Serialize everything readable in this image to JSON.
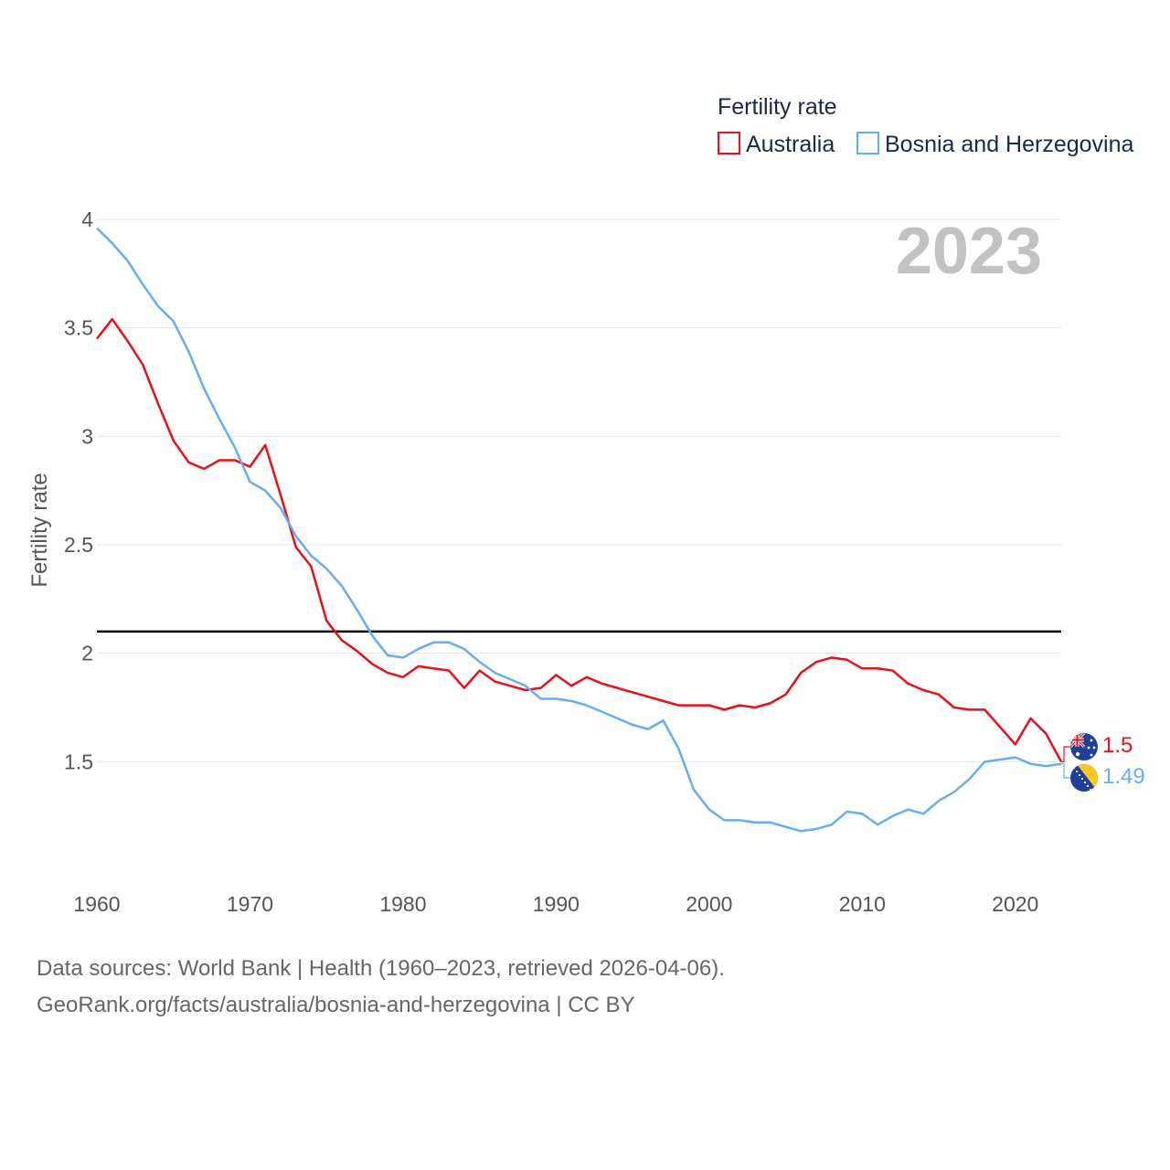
{
  "chart_data": {
    "type": "line",
    "title": "",
    "legend_title": "Fertility rate",
    "ylabel": "Fertility rate",
    "xlabel": "",
    "year_label": "2023",
    "ylim": [
      1.0,
      4.0
    ],
    "xlim": [
      1960,
      2023
    ],
    "yticks": [
      1.5,
      2,
      2.5,
      3,
      3.5,
      4
    ],
    "ytick_labels": [
      "1.5",
      "2",
      "2.5",
      "3",
      "3.5",
      "4"
    ],
    "xticks": [
      1960,
      1970,
      1980,
      1990,
      2000,
      2010,
      2020
    ],
    "xtick_labels": [
      "1960",
      "1970",
      "1980",
      "1990",
      "2000",
      "2010",
      "2020"
    ],
    "reference_line": 2.1,
    "x": [
      1960,
      1961,
      1962,
      1963,
      1964,
      1965,
      1966,
      1967,
      1968,
      1969,
      1970,
      1971,
      1972,
      1973,
      1974,
      1975,
      1976,
      1977,
      1978,
      1979,
      1980,
      1981,
      1982,
      1983,
      1984,
      1985,
      1986,
      1987,
      1988,
      1989,
      1990,
      1991,
      1992,
      1993,
      1994,
      1995,
      1996,
      1997,
      1998,
      1999,
      2000,
      2001,
      2002,
      2003,
      2004,
      2005,
      2006,
      2007,
      2008,
      2009,
      2010,
      2011,
      2012,
      2013,
      2014,
      2015,
      2016,
      2017,
      2018,
      2019,
      2020,
      2021,
      2022,
      2023
    ],
    "series": [
      {
        "name": "Australia",
        "color": "#e8101a",
        "end_label": "1.5",
        "values": [
          3.45,
          3.54,
          3.44,
          3.33,
          3.15,
          2.98,
          2.88,
          2.85,
          2.89,
          2.89,
          2.86,
          2.96,
          2.73,
          2.49,
          2.4,
          2.15,
          2.06,
          2.01,
          1.95,
          1.91,
          1.89,
          1.94,
          1.93,
          1.92,
          1.84,
          1.92,
          1.87,
          1.85,
          1.83,
          1.84,
          1.9,
          1.85,
          1.89,
          1.86,
          1.84,
          1.82,
          1.8,
          1.78,
          1.76,
          1.76,
          1.76,
          1.74,
          1.76,
          1.75,
          1.77,
          1.81,
          1.91,
          1.96,
          1.98,
          1.97,
          1.93,
          1.93,
          1.92,
          1.86,
          1.83,
          1.81,
          1.75,
          1.74,
          1.74,
          1.66,
          1.58,
          1.7,
          1.63,
          1.5
        ]
      },
      {
        "name": "Bosnia and Herzegovina",
        "color": "#65aef0",
        "end_label": "1.49",
        "values": [
          3.96,
          3.89,
          3.81,
          3.7,
          3.6,
          3.53,
          3.39,
          3.22,
          3.08,
          2.95,
          2.79,
          2.75,
          2.67,
          2.54,
          2.45,
          2.39,
          2.31,
          2.2,
          2.08,
          1.99,
          1.98,
          2.02,
          2.05,
          2.05,
          2.02,
          1.96,
          1.91,
          1.88,
          1.85,
          1.79,
          1.79,
          1.78,
          1.76,
          1.73,
          1.7,
          1.67,
          1.65,
          1.69,
          1.56,
          1.37,
          1.28,
          1.23,
          1.23,
          1.22,
          1.22,
          1.2,
          1.18,
          1.19,
          1.21,
          1.27,
          1.26,
          1.21,
          1.25,
          1.28,
          1.26,
          1.32,
          1.36,
          1.42,
          1.5,
          1.51,
          1.52,
          1.49,
          1.48,
          1.49
        ]
      }
    ]
  },
  "source": {
    "line1": "Data sources: World Bank | Health (1960–2023, retrieved 2026-04-06).",
    "line2": "GeoRank.org/facts/australia/bosnia-and-herzegovina | CC BY"
  }
}
